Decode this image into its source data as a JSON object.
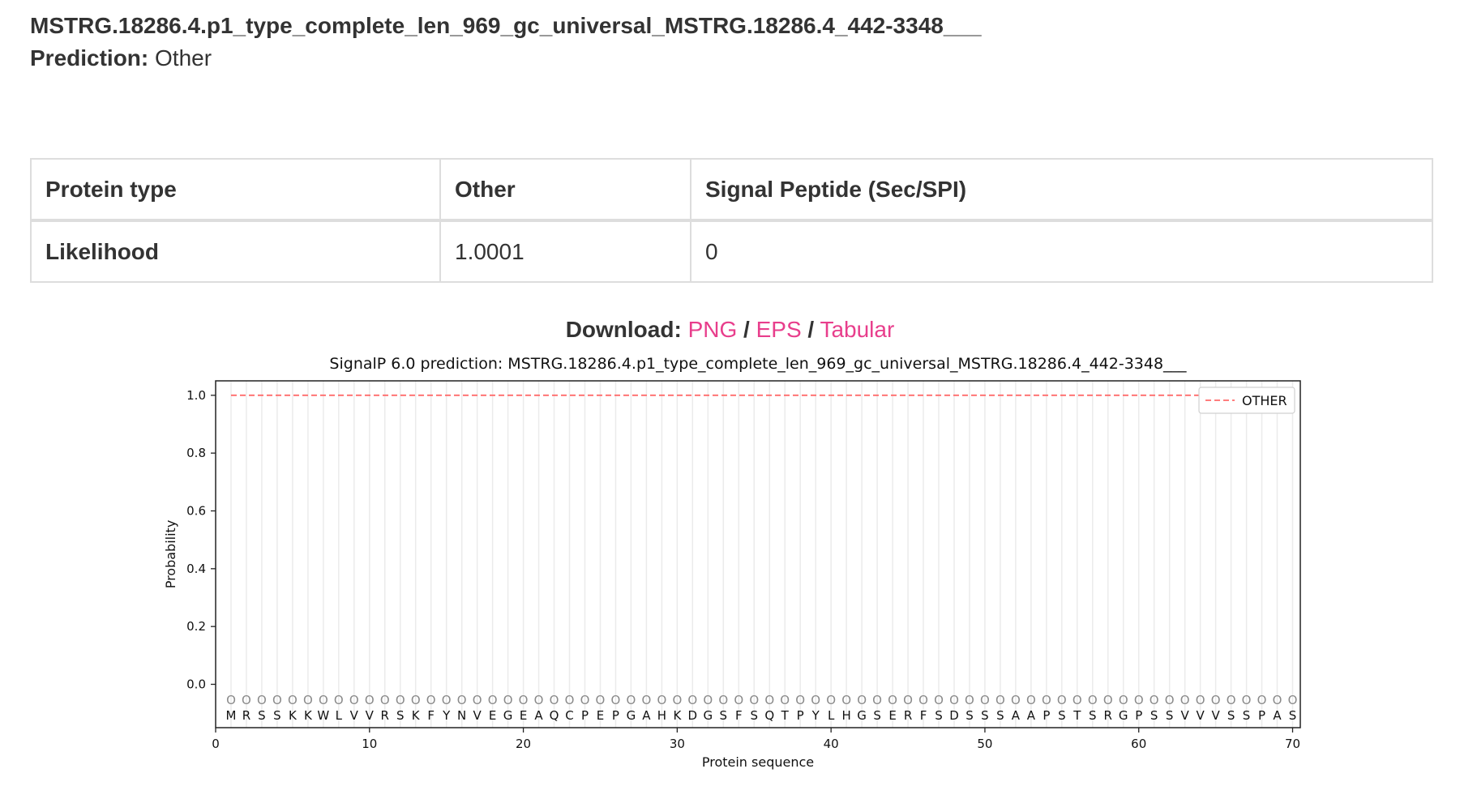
{
  "header": {
    "sequence_name": "MSTRG.18286.4.p1_type_complete_len_969_gc_universal_MSTRG.18286.4_442-3348___",
    "prediction_label": "Prediction:",
    "prediction_value": "Other"
  },
  "summary_table": {
    "columns": [
      "Protein type",
      "Other",
      "Signal Peptide (Sec/SPI)"
    ],
    "row_label": "Likelihood",
    "values": [
      "1.0001",
      "0"
    ]
  },
  "download": {
    "label": "Download:",
    "links": [
      "PNG",
      "EPS",
      "Tabular"
    ],
    "separator": "/"
  },
  "colors": {
    "link": "#e83e8c",
    "other_line": "#ff6b6b"
  },
  "chart_data": {
    "type": "line",
    "title": "SignalP 6.0 prediction: MSTRG.18286.4.p1_type_complete_len_969_gc_universal_MSTRG.18286.4_442-3348___",
    "xlabel": "Protein sequence",
    "ylabel": "Probability",
    "xlim": [
      0,
      70.5
    ],
    "ylim": [
      -0.15,
      1.05
    ],
    "x_ticks": [
      0,
      10,
      20,
      30,
      40,
      50,
      60,
      70
    ],
    "y_ticks": [
      "0.0",
      "0.2",
      "0.4",
      "0.6",
      "0.8",
      "1.0"
    ],
    "sequence": [
      "M",
      "R",
      "S",
      "S",
      "K",
      "K",
      "W",
      "L",
      "V",
      "V",
      "R",
      "S",
      "K",
      "F",
      "Y",
      "N",
      "V",
      "E",
      "G",
      "E",
      "A",
      "Q",
      "C",
      "P",
      "E",
      "P",
      "G",
      "A",
      "H",
      "K",
      "D",
      "G",
      "S",
      "F",
      "S",
      "Q",
      "T",
      "P",
      "Y",
      "L",
      "H",
      "G",
      "S",
      "E",
      "R",
      "F",
      "S",
      "D",
      "S",
      "S",
      "S",
      "A",
      "A",
      "P",
      "S",
      "T",
      "S",
      "R",
      "G",
      "P",
      "S",
      "S",
      "V",
      "V",
      "V",
      "S",
      "S",
      "P",
      "A",
      "S"
    ],
    "marker_label": "O",
    "series": [
      {
        "name": "OTHER",
        "x_range": [
          1,
          70
        ],
        "value": 1.0,
        "style": "dashed"
      }
    ],
    "legend": {
      "position": "top-right",
      "entries": [
        "OTHER"
      ]
    },
    "grid": "vertical"
  }
}
